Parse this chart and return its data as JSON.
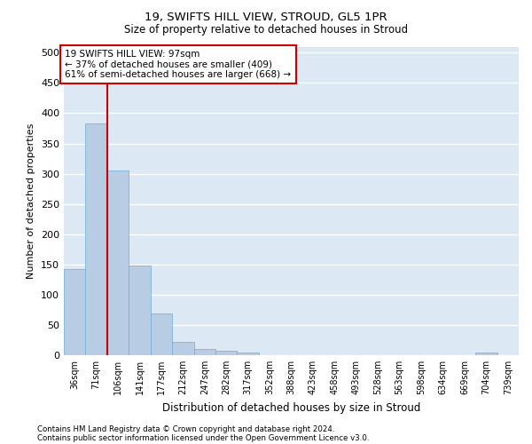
{
  "title1": "19, SWIFTS HILL VIEW, STROUD, GL5 1PR",
  "title2": "Size of property relative to detached houses in Stroud",
  "xlabel": "Distribution of detached houses by size in Stroud",
  "ylabel": "Number of detached properties",
  "bar_color": "#b8cce4",
  "bar_edge_color": "#6baed6",
  "annotation_box_color": "#cc0000",
  "vline_color": "#cc0000",
  "categories": [
    "36sqm",
    "71sqm",
    "106sqm",
    "141sqm",
    "177sqm",
    "212sqm",
    "247sqm",
    "282sqm",
    "317sqm",
    "352sqm",
    "388sqm",
    "423sqm",
    "458sqm",
    "493sqm",
    "528sqm",
    "563sqm",
    "598sqm",
    "634sqm",
    "669sqm",
    "704sqm",
    "739sqm"
  ],
  "values": [
    143,
    383,
    306,
    148,
    69,
    22,
    10,
    8,
    4,
    0,
    0,
    0,
    0,
    0,
    0,
    0,
    0,
    0,
    0,
    4,
    0
  ],
  "vline_x": 1.5,
  "annotation_text": "19 SWIFTS HILL VIEW: 97sqm\n← 37% of detached houses are smaller (409)\n61% of semi-detached houses are larger (668) →",
  "ylim": [
    0,
    510
  ],
  "yticks": [
    0,
    50,
    100,
    150,
    200,
    250,
    300,
    350,
    400,
    450,
    500
  ],
  "footnote1": "Contains HM Land Registry data © Crown copyright and database right 2024.",
  "footnote2": "Contains public sector information licensed under the Open Government Licence v3.0.",
  "background_color": "#dce9f5",
  "grid_color": "#ffffff"
}
